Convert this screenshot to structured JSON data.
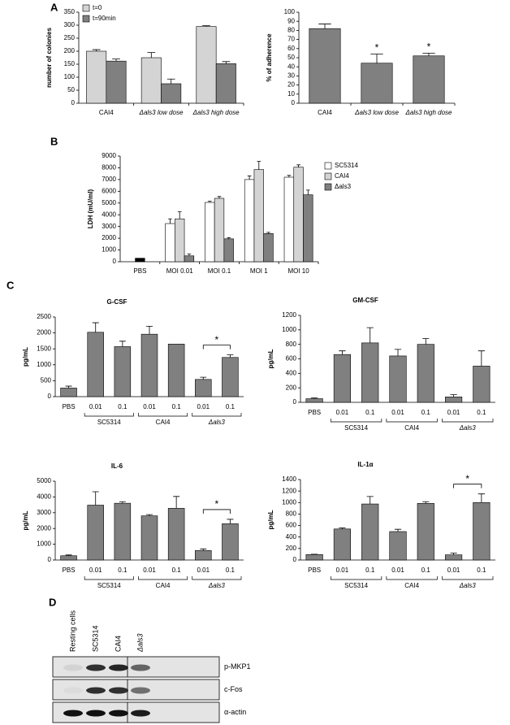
{
  "panels": [
    "A",
    "B",
    "C",
    "D"
  ],
  "chart_data": [
    {
      "type": "bar",
      "ylabel": "number of colonies",
      "categories": [
        "CAI4",
        "Δals3 low dose",
        "Δals3 high dose"
      ],
      "series": [
        {
          "name": "t=0",
          "color": "#d4d4d4",
          "values": [
            200,
            175,
            295
          ],
          "errors": [
            6,
            20,
            3
          ]
        },
        {
          "name": "t=90min",
          "color": "#808080",
          "values": [
            162,
            75,
            152
          ],
          "errors": [
            8,
            18,
            8
          ]
        }
      ],
      "ylim": [
        0,
        350
      ],
      "yticks": [
        0,
        50,
        100,
        150,
        200,
        250,
        300,
        350
      ],
      "legend": "upper left"
    },
    {
      "type": "bar",
      "ylabel": "% of adherence",
      "categories": [
        "CAI4",
        "Δals3 low dose",
        "Δals3 high dose"
      ],
      "series": [
        {
          "color": "#808080",
          "values": [
            82,
            44,
            52
          ],
          "errors": [
            5,
            10,
            3
          ]
        }
      ],
      "annotations": [
        {
          "index": 1,
          "text": "*"
        },
        {
          "index": 2,
          "text": "*"
        }
      ],
      "ylim": [
        0,
        100
      ],
      "yticks": [
        0,
        10,
        20,
        30,
        40,
        50,
        60,
        70,
        80,
        90,
        100
      ]
    },
    {
      "type": "bar",
      "ylabel": "LDH (mU/ml)",
      "categories": [
        "PBS",
        "MOI 0.01",
        "MOI 0.1",
        "MOI 1",
        "MOI 10"
      ],
      "series": [
        {
          "name": "SC5314",
          "color": "#ffffff",
          "values": [
            null,
            3250,
            5050,
            7000,
            7200
          ],
          "errors": [
            null,
            400,
            100,
            300,
            150
          ]
        },
        {
          "name": "CAI4",
          "color": "#d4d4d4",
          "values": [
            null,
            3650,
            5400,
            7850,
            8050
          ],
          "errors": [
            null,
            600,
            150,
            700,
            200
          ]
        },
        {
          "name": "Δals3",
          "color": "#808080",
          "values": [
            null,
            500,
            1950,
            2400,
            5700
          ],
          "errors": [
            null,
            150,
            100,
            100,
            400
          ]
        }
      ],
      "control": {
        "index": 0,
        "value": 300,
        "color": "#000000"
      },
      "ylim": [
        0,
        9000
      ],
      "yticks": [
        0,
        1000,
        2000,
        3000,
        4000,
        5000,
        6000,
        7000,
        8000,
        9000
      ],
      "legend": "right"
    },
    {
      "type": "bar",
      "title": "G-CSF",
      "ylabel": "pg/mL",
      "categories": [
        "PBS",
        "0.01",
        "0.1",
        "0.01",
        "0.1",
        "0.01",
        "0.1"
      ],
      "groups": [
        {
          "label": "SC5314",
          "span": [
            1,
            2
          ]
        },
        {
          "label": "CAI4",
          "span": [
            3,
            4
          ]
        },
        {
          "label": "Δals3",
          "span": [
            5,
            6
          ],
          "italic": true
        }
      ],
      "series": [
        {
          "color": "#808080",
          "values": [
            270,
            2020,
            1570,
            1960,
            1650,
            540,
            1230
          ],
          "errors": [
            60,
            300,
            170,
            250,
            null,
            70,
            80
          ]
        }
      ],
      "significance": {
        "between": [
          5,
          6
        ],
        "text": "*"
      },
      "ylim": [
        0,
        2500
      ],
      "yticks": [
        0,
        500,
        1000,
        1500,
        2000,
        2500
      ]
    },
    {
      "type": "bar",
      "title": "GM-CSF",
      "ylabel": "pg/mL",
      "categories": [
        "PBS",
        "0.01",
        "0.1",
        "0.01",
        "0.1",
        "0.01",
        "0.1"
      ],
      "groups": [
        {
          "label": "SC5314",
          "span": [
            1,
            2
          ]
        },
        {
          "label": "CAI4",
          "span": [
            3,
            4
          ]
        },
        {
          "label": "Δals3",
          "span": [
            5,
            6
          ],
          "italic": true
        }
      ],
      "series": [
        {
          "color": "#808080",
          "values": [
            50,
            660,
            820,
            640,
            800,
            75,
            500
          ],
          "errors": [
            10,
            50,
            210,
            90,
            80,
            30,
            210
          ]
        }
      ],
      "ylim": [
        0,
        1200
      ],
      "yticks": [
        0,
        200,
        400,
        600,
        800,
        1000,
        1200
      ]
    },
    {
      "type": "bar",
      "title": "IL-6",
      "ylabel": "pg/mL",
      "categories": [
        "PBS",
        "0.01",
        "0.1",
        "0.01",
        "0.1",
        "0.01",
        "0.1"
      ],
      "groups": [
        {
          "label": "SC5314",
          "span": [
            1,
            2
          ]
        },
        {
          "label": "CAI4",
          "span": [
            3,
            4
          ]
        },
        {
          "label": "Δals3",
          "span": [
            5,
            6
          ],
          "italic": true
        }
      ],
      "series": [
        {
          "color": "#808080",
          "values": [
            270,
            3480,
            3600,
            2800,
            3280,
            600,
            2300
          ],
          "errors": [
            50,
            850,
            100,
            80,
            750,
            100,
            280
          ]
        }
      ],
      "significance": {
        "between": [
          5,
          6
        ],
        "text": "*"
      },
      "ylim": [
        0,
        5000
      ],
      "yticks": [
        0,
        1000,
        2000,
        3000,
        4000,
        5000
      ]
    },
    {
      "type": "bar",
      "title": "IL-1α",
      "ylabel": "pg/mL",
      "categories": [
        "PBS",
        "0.01",
        "0.1",
        "0.01",
        "0.1",
        "0.01",
        "0.1"
      ],
      "groups": [
        {
          "label": "SC5314",
          "span": [
            1,
            2
          ]
        },
        {
          "label": "CAI4",
          "span": [
            3,
            4
          ]
        },
        {
          "label": "Δals3",
          "span": [
            5,
            6
          ],
          "italic": true
        }
      ],
      "series": [
        {
          "color": "#808080",
          "values": [
            95,
            540,
            975,
            495,
            985,
            90,
            1000
          ],
          "errors": [
            5,
            20,
            130,
            40,
            30,
            30,
            150
          ]
        }
      ],
      "significance": {
        "between": [
          5,
          6
        ],
        "text": "*"
      },
      "ylim": [
        0,
        1400
      ],
      "yticks": [
        0,
        200,
        400,
        600,
        800,
        1000,
        1200,
        1400
      ]
    }
  ],
  "blot": {
    "lanes": [
      "Resting cells",
      "SC5314",
      "CAI4",
      "Δals3"
    ],
    "bands": [
      "p-MKP1",
      "c-Fos",
      "α-actin"
    ]
  }
}
